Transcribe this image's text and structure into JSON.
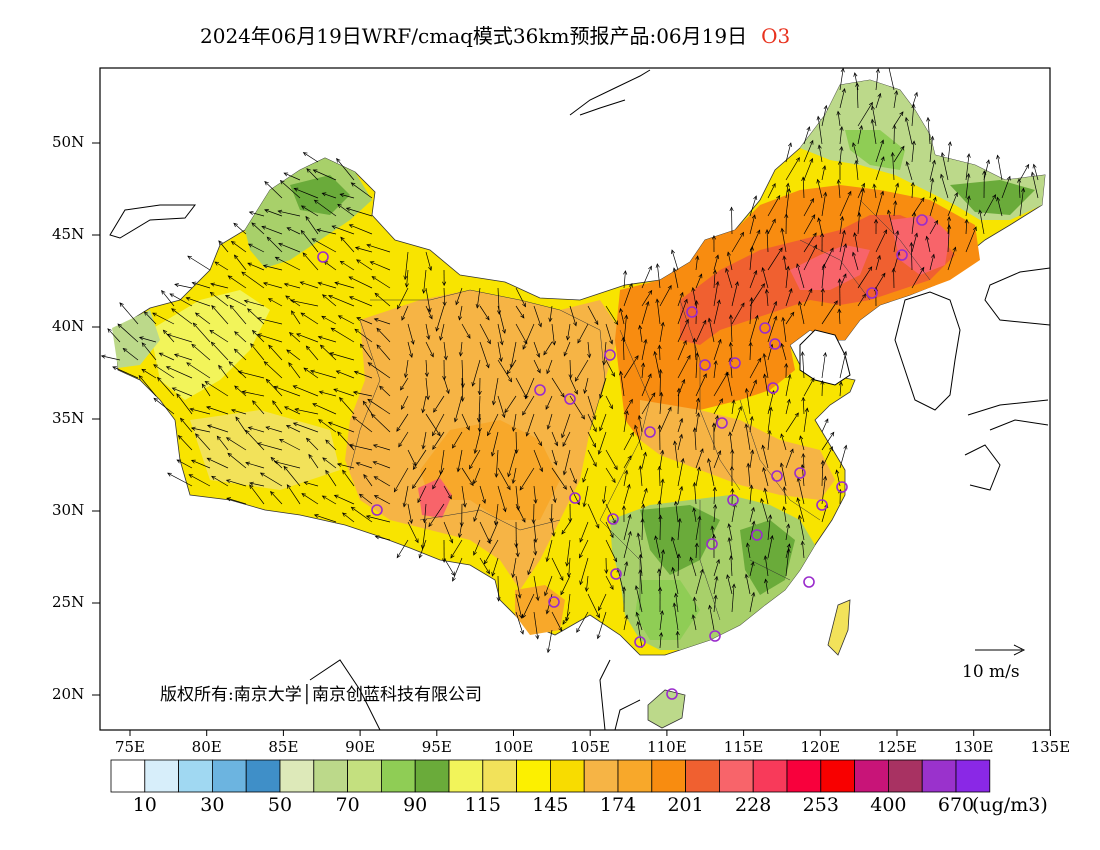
{
  "title": "2024年06月19日WRF/cmaq模式36km预报产品:06月19日",
  "species": "O3",
  "units": "(ug/m3)",
  "copyright": "版权所有:南京大学│南京创蓝科技有限公司",
  "wind_reference": "10 m/s",
  "axes": {
    "lat_labels": [
      "50N",
      "45N",
      "40N",
      "35N",
      "30N",
      "25N",
      "20N"
    ],
    "lon_labels": [
      "75E",
      "80E",
      "85E",
      "90E",
      "95E",
      "100E",
      "105E",
      "110E",
      "115E",
      "120E",
      "125E",
      "130E",
      "135E"
    ]
  },
  "colorbar": {
    "colors": [
      "#ffffff",
      "#d7eefa",
      "#a0d8f2",
      "#6cb4e0",
      "#3f8fc8",
      "#dde9b9",
      "#bcd98a",
      "#c4e07f",
      "#8fcd55",
      "#6aab3a",
      "#f2f45a",
      "#f2e25a",
      "#fcf000",
      "#f8dc00",
      "#f6b445",
      "#f8a82a",
      "#f88c10",
      "#f06030",
      "#f8646a",
      "#f83a5a",
      "#f8003c",
      "#f80000",
      "#c81478",
      "#a83262",
      "#9a32cc",
      "#8a28e6"
    ],
    "labels": [
      "10",
      "30",
      "50",
      "70",
      "90",
      "115",
      "145",
      "174",
      "201",
      "228",
      "253",
      "400",
      "670"
    ]
  }
}
